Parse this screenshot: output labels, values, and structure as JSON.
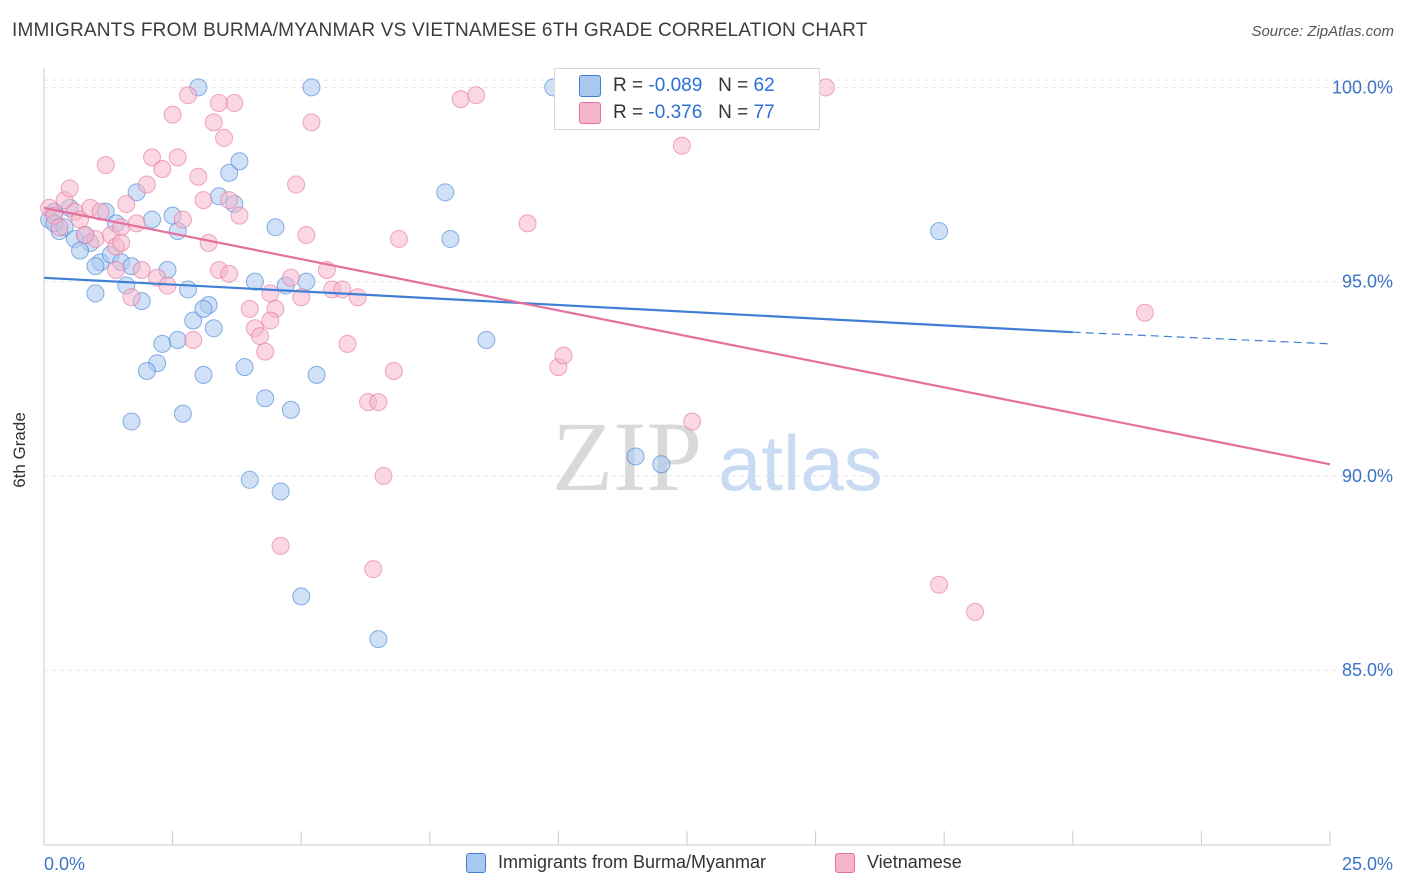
{
  "title": "IMMIGRANTS FROM BURMA/MYANMAR VS VIETNAMESE 6TH GRADE CORRELATION CHART",
  "source": "Source: ZipAtlas.com",
  "watermark": {
    "zip": "ZIP",
    "atlas": "atlas"
  },
  "stats_box": {
    "rows": [
      {
        "r_label": "R =",
        "r_value": "-0.089",
        "n_label": "N =",
        "n_value": "62",
        "color": "#a9c8f0"
      },
      {
        "r_label": "R =",
        "r_value": "-0.376",
        "n_label": "N =",
        "n_value": "77",
        "color": "#f5b6cc"
      }
    ]
  },
  "legend": [
    {
      "label": "Immigrants from Burma/Myanmar",
      "color": "#a9c8f0"
    },
    {
      "label": "Vietnamese",
      "color": "#f5b6cc"
    }
  ],
  "chart_data": {
    "type": "scatter",
    "title": "IMMIGRANTS FROM BURMA/MYANMAR VS VIETNAMESE 6TH GRADE CORRELATION CHART",
    "xlabel": "",
    "ylabel": "6th Grade",
    "xlim": [
      0,
      25
    ],
    "ylim": [
      80.5,
      100.5
    ],
    "x_tick_labels": [
      {
        "value": 0,
        "label": "0.0%"
      },
      {
        "value": 25,
        "label": "25.0%"
      }
    ],
    "y_tick_labels": [
      {
        "value": 100,
        "label": "100.0%"
      },
      {
        "value": 95,
        "label": "95.0%"
      },
      {
        "value": 90,
        "label": "90.0%"
      },
      {
        "value": 85,
        "label": "85.0%"
      }
    ],
    "grid": true,
    "legend_position": "bottom",
    "colors": {
      "burma": "#3f7fd4",
      "vietnamese": "#e4709c",
      "burma_fill": "#a9c8f0",
      "vietnamese_fill": "#f5b6cc",
      "axis_labels": "#3a73c9"
    },
    "series": [
      {
        "name": "Immigrants from Burma/Myanmar",
        "color": "#3f7fd4",
        "fill": "#a9c8f0",
        "trend": {
          "x": [
            0,
            20
          ],
          "y": [
            95.1,
            93.7
          ],
          "dashed_to": [
            25,
            93.4
          ]
        },
        "points": [
          [
            0.1,
            96.6
          ],
          [
            0.2,
            96.8
          ],
          [
            0.3,
            96.3
          ],
          [
            0.2,
            96.5
          ],
          [
            0.4,
            96.4
          ],
          [
            0.5,
            96.9
          ],
          [
            0.6,
            96.1
          ],
          [
            0.8,
            96.2
          ],
          [
            0.9,
            96.0
          ],
          [
            1.1,
            95.5
          ],
          [
            1.0,
            94.7
          ],
          [
            1.2,
            96.8
          ],
          [
            1.4,
            96.5
          ],
          [
            1.3,
            95.7
          ],
          [
            1.5,
            95.5
          ],
          [
            1.6,
            94.9
          ],
          [
            1.7,
            95.4
          ],
          [
            1.9,
            94.5
          ],
          [
            2.1,
            96.6
          ],
          [
            2.2,
            92.9
          ],
          [
            2.3,
            93.4
          ],
          [
            2.4,
            95.3
          ],
          [
            2.5,
            96.7
          ],
          [
            2.6,
            93.5
          ],
          [
            2.0,
            92.7
          ],
          [
            2.7,
            91.6
          ],
          [
            2.8,
            94.8
          ],
          [
            2.9,
            94.0
          ],
          [
            3.0,
            100.0
          ],
          [
            3.1,
            92.6
          ],
          [
            3.2,
            94.4
          ],
          [
            3.3,
            93.8
          ],
          [
            3.4,
            97.2
          ],
          [
            3.6,
            97.8
          ],
          [
            3.7,
            97.0
          ],
          [
            3.8,
            98.1
          ],
          [
            3.9,
            92.8
          ],
          [
            4.0,
            89.9
          ],
          [
            4.1,
            95.0
          ],
          [
            4.3,
            92.0
          ],
          [
            4.5,
            96.4
          ],
          [
            4.6,
            89.6
          ],
          [
            4.7,
            94.9
          ],
          [
            4.8,
            91.7
          ],
          [
            5.0,
            86.9
          ],
          [
            5.1,
            95.0
          ],
          [
            5.2,
            100.0
          ],
          [
            5.3,
            92.6
          ],
          [
            1.7,
            91.4
          ],
          [
            2.6,
            96.3
          ],
          [
            3.1,
            94.3
          ],
          [
            6.5,
            85.8
          ],
          [
            7.8,
            97.3
          ],
          [
            7.9,
            96.1
          ],
          [
            8.6,
            93.5
          ],
          [
            9.9,
            100.0
          ],
          [
            11.5,
            90.5
          ],
          [
            12.0,
            90.3
          ],
          [
            17.4,
            96.3
          ],
          [
            1.0,
            95.4
          ],
          [
            0.7,
            95.8
          ],
          [
            1.8,
            97.3
          ]
        ]
      },
      {
        "name": "Vietnamese",
        "color": "#e4709c",
        "fill": "#f5b6cc",
        "trend": {
          "x": [
            0,
            25
          ],
          "y": [
            96.9,
            90.3
          ]
        },
        "points": [
          [
            0.1,
            96.9
          ],
          [
            0.2,
            96.7
          ],
          [
            0.3,
            96.4
          ],
          [
            0.4,
            97.1
          ],
          [
            0.5,
            97.4
          ],
          [
            0.6,
            96.8
          ],
          [
            0.7,
            96.6
          ],
          [
            0.9,
            96.9
          ],
          [
            1.0,
            96.1
          ],
          [
            1.1,
            96.8
          ],
          [
            1.2,
            98.0
          ],
          [
            1.3,
            96.2
          ],
          [
            1.4,
            95.3
          ],
          [
            1.5,
            96.4
          ],
          [
            1.6,
            97.0
          ],
          [
            1.7,
            94.6
          ],
          [
            1.8,
            96.5
          ],
          [
            1.9,
            95.3
          ],
          [
            2.0,
            97.5
          ],
          [
            2.1,
            98.2
          ],
          [
            2.2,
            95.1
          ],
          [
            2.3,
            97.9
          ],
          [
            2.4,
            94.9
          ],
          [
            2.5,
            99.3
          ],
          [
            2.6,
            98.2
          ],
          [
            2.7,
            96.6
          ],
          [
            2.8,
            99.8
          ],
          [
            2.9,
            93.5
          ],
          [
            3.0,
            97.7
          ],
          [
            3.1,
            97.1
          ],
          [
            3.2,
            96.0
          ],
          [
            3.3,
            99.1
          ],
          [
            3.4,
            95.3
          ],
          [
            3.5,
            98.7
          ],
          [
            3.6,
            97.1
          ],
          [
            3.7,
            99.6
          ],
          [
            3.8,
            96.7
          ],
          [
            4.0,
            94.3
          ],
          [
            4.1,
            93.8
          ],
          [
            4.2,
            93.6
          ],
          [
            4.3,
            93.2
          ],
          [
            4.4,
            94.7
          ],
          [
            4.5,
            94.3
          ],
          [
            4.6,
            88.2
          ],
          [
            4.8,
            95.1
          ],
          [
            4.9,
            97.5
          ],
          [
            5.0,
            94.6
          ],
          [
            5.1,
            96.2
          ],
          [
            5.2,
            99.1
          ],
          [
            5.5,
            95.3
          ],
          [
            5.6,
            94.8
          ],
          [
            5.8,
            94.8
          ],
          [
            5.9,
            93.4
          ],
          [
            6.1,
            94.6
          ],
          [
            6.3,
            91.9
          ],
          [
            6.4,
            87.6
          ],
          [
            6.5,
            91.9
          ],
          [
            6.6,
            90.0
          ],
          [
            6.8,
            92.7
          ],
          [
            6.9,
            96.1
          ],
          [
            8.1,
            99.7
          ],
          [
            8.4,
            99.8
          ],
          [
            9.4,
            96.5
          ],
          [
            10.0,
            92.8
          ],
          [
            10.1,
            93.1
          ],
          [
            12.4,
            98.5
          ],
          [
            12.6,
            91.4
          ],
          [
            15.2,
            100.0
          ],
          [
            17.4,
            87.2
          ],
          [
            18.1,
            86.5
          ],
          [
            21.4,
            94.2
          ],
          [
            3.4,
            99.6
          ],
          [
            1.4,
            95.9
          ],
          [
            0.8,
            96.2
          ],
          [
            1.5,
            96.0
          ],
          [
            3.6,
            95.2
          ],
          [
            4.4,
            94.0
          ]
        ]
      }
    ]
  }
}
